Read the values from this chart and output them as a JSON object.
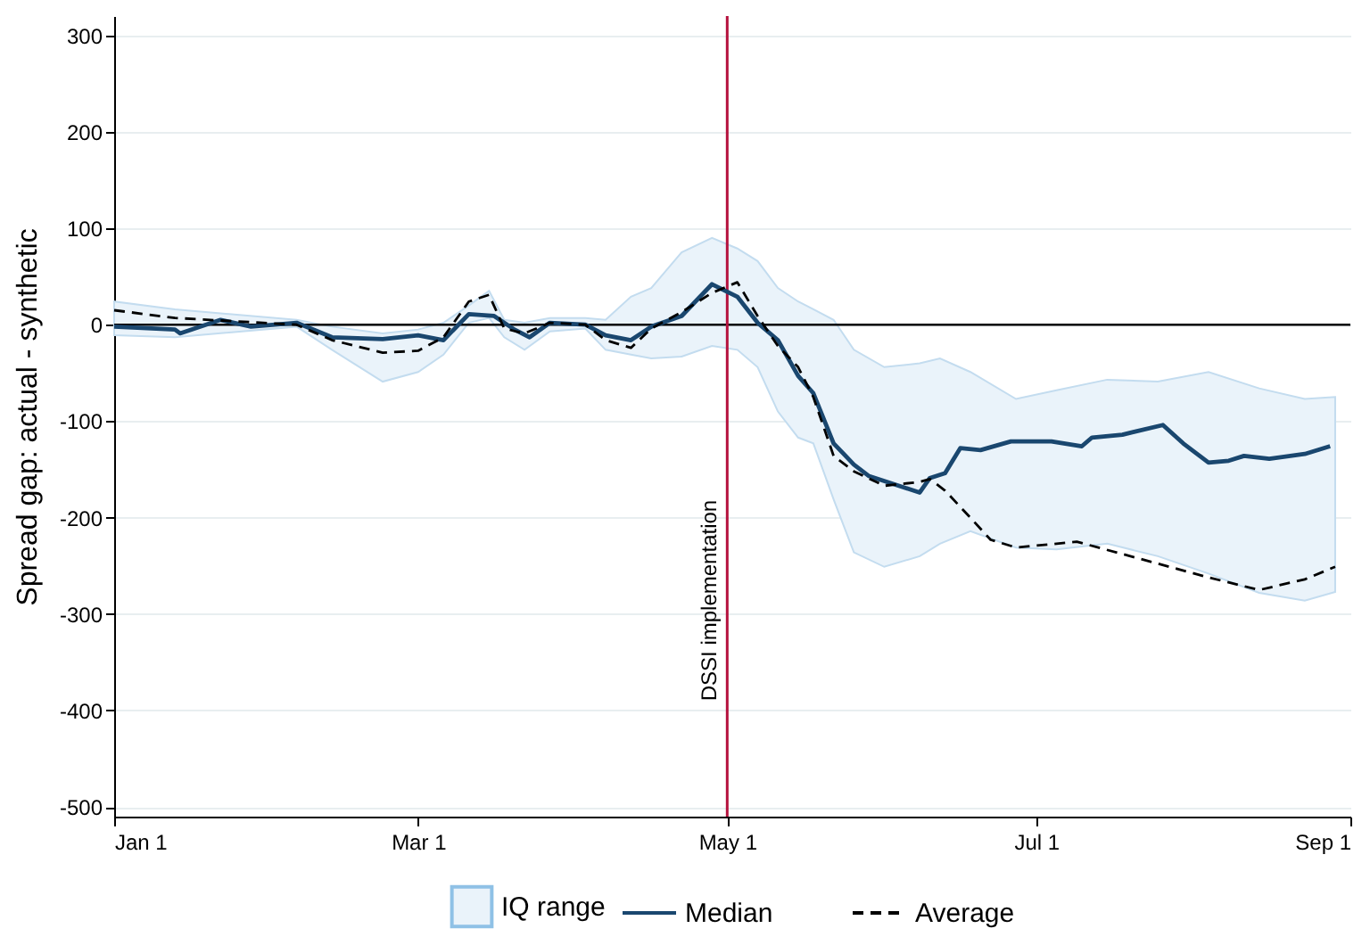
{
  "chart_data": {
    "type": "line",
    "ylabel": "Spread gap: actual - synthetic",
    "xlim": [
      "--01-01",
      "--09-01"
    ],
    "xticks": [
      {
        "value": "--01-01",
        "label": "Jan 1"
      },
      {
        "value": "--03-01",
        "label": "Mar 1"
      },
      {
        "value": "--05-01",
        "label": "May 1"
      },
      {
        "value": "--07-01",
        "label": "Jul 1"
      },
      {
        "value": "--09-01",
        "label": "Sep 1"
      }
    ],
    "ylim": [
      -510,
      320
    ],
    "yticks": [
      -500,
      -400,
      -300,
      -200,
      -100,
      0,
      100,
      200,
      300
    ],
    "grid": "y",
    "legend": "bottom",
    "ref_lines": [
      {
        "axis": "y",
        "value": 0,
        "color": "#000000"
      },
      {
        "axis": "x",
        "value": "--05-01",
        "label": "DSSI implementation",
        "color": "#b5123e"
      }
    ],
    "series": [
      {
        "name": "Median",
        "color": "#1a476f",
        "line_style": "solid",
        "x": [
          "--01-01",
          "--01-13",
          "--01-14",
          "--01-22",
          "--01-28",
          "--02-06",
          "--02-13",
          "--02-23",
          "--03-01",
          "--03-06",
          "--03-11",
          "--03-16",
          "--03-20",
          "--03-23",
          "--03-27",
          "--04-03",
          "--04-07",
          "--04-12",
          "--04-16",
          "--04-22",
          "--04-28",
          "--05-03",
          "--05-07",
          "--05-11",
          "--05-15",
          "--05-18",
          "--05-22",
          "--05-26",
          "--05-29",
          "--06-08",
          "--06-10",
          "--06-13",
          "--06-16",
          "--06-20",
          "--06-26",
          "--07-04",
          "--07-10",
          "--07-12",
          "--07-18",
          "--07-26",
          "--07-30",
          "--08-04",
          "--08-08",
          "--08-11",
          "--08-16",
          "--08-23",
          "--08-28"
        ],
        "values": [
          -2,
          -5,
          -9,
          5,
          -2,
          2,
          -13,
          -15,
          -11,
          -16,
          11,
          9,
          -5,
          -13,
          2,
          0,
          -11,
          -16,
          -2,
          9,
          42,
          29,
          2,
          -16,
          -53,
          -71,
          -123,
          -145,
          -157,
          -174,
          -159,
          -154,
          -128,
          -130,
          -121,
          -121,
          -126,
          -117,
          -114,
          -104,
          -123,
          -143,
          -141,
          -136,
          -139,
          -134,
          -126
        ]
      },
      {
        "name": "Average",
        "color": "#000000",
        "line_style": "dashed",
        "x": [
          "--01-01",
          "--01-13",
          "--02-06",
          "--02-13",
          "--02-23",
          "--03-01",
          "--03-06",
          "--03-11",
          "--03-15",
          "--03-18",
          "--03-22",
          "--03-27",
          "--04-03",
          "--04-07",
          "--04-12",
          "--04-16",
          "--04-22",
          "--04-28",
          "--05-03",
          "--05-07",
          "--05-11",
          "--05-15",
          "--05-18",
          "--05-22",
          "--05-26",
          "--06-01",
          "--06-08",
          "--06-10",
          "--06-13",
          "--06-18",
          "--06-22",
          "--06-27",
          "--07-09",
          "--07-21",
          "--08-04",
          "--08-14",
          "--08-23",
          "--08-29"
        ],
        "values": [
          15,
          7,
          0,
          -16,
          -29,
          -27,
          -13,
          24,
          31,
          -4,
          -9,
          2,
          0,
          -16,
          -24,
          -4,
          13,
          33,
          44,
          9,
          -22,
          -44,
          -75,
          -136,
          -152,
          -167,
          -163,
          -160,
          -172,
          -200,
          -223,
          -231,
          -225,
          -242,
          -262,
          -275,
          -264,
          -251
        ]
      },
      {
        "name": "IQ range",
        "type": "area",
        "color": "#eaf3fa",
        "x": [
          "--01-01",
          "--01-13",
          "--02-06",
          "--02-13",
          "--02-23",
          "--03-01",
          "--03-06",
          "--03-11",
          "--03-15",
          "--03-18",
          "--03-22",
          "--03-27",
          "--04-03",
          "--04-07",
          "--04-12",
          "--04-16",
          "--04-22",
          "--04-28",
          "--05-03",
          "--05-07",
          "--05-11",
          "--05-15",
          "--05-18",
          "--05-22",
          "--05-26",
          "--06-01",
          "--06-08",
          "--06-12",
          "--06-18",
          "--06-27",
          "--07-05",
          "--07-15",
          "--07-25",
          "--08-04",
          "--08-14",
          "--08-23",
          "--08-29"
        ],
        "lower": [
          -11,
          -13,
          -2,
          -26,
          -59,
          -49,
          -31,
          2,
          7,
          -13,
          -26,
          -7,
          -4,
          -26,
          -31,
          -35,
          -33,
          -22,
          -26,
          -44,
          -90,
          -117,
          -123,
          -181,
          -236,
          -251,
          -240,
          -227,
          -214,
          -231,
          -233,
          -227,
          -240,
          -258,
          -278,
          -286,
          -277
        ],
        "values": [
          null,
          null,
          null,
          null,
          null,
          null,
          null,
          null,
          null,
          null,
          null,
          null,
          null,
          null,
          null,
          null,
          null,
          null,
          null,
          null,
          null,
          null,
          null,
          null,
          null,
          null,
          null,
          null,
          null,
          null,
          null,
          null,
          null,
          null,
          null,
          null,
          null
        ],
        "upper": [
          24,
          16,
          5,
          -2,
          -9,
          -5,
          2,
          20,
          35,
          5,
          2,
          7,
          7,
          5,
          29,
          38,
          75,
          90,
          79,
          66,
          38,
          24,
          16,
          5,
          -26,
          -44,
          -40,
          -35,
          -49,
          -77,
          -68,
          -57,
          -59,
          -49,
          -66,
          -77,
          -75
        ]
      }
    ]
  }
}
